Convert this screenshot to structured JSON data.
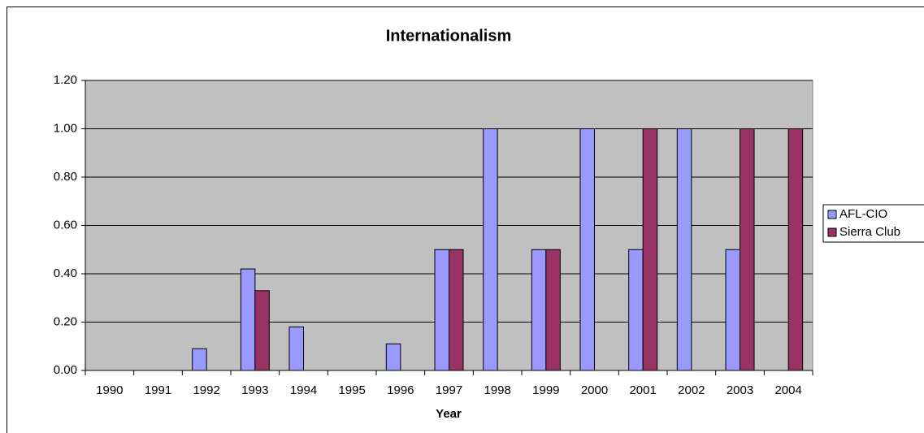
{
  "chart_data": {
    "type": "bar",
    "title": "Internationalism",
    "x_label": "Year",
    "categories": [
      "1990",
      "1991",
      "1992",
      "1993",
      "1994",
      "1995",
      "1996",
      "1997",
      "1998",
      "1999",
      "2000",
      "2001",
      "2002",
      "2003",
      "2004"
    ],
    "series": [
      {
        "name": "AFL-CIO",
        "color": "#9999ff",
        "values": [
          0,
          0,
          0.09,
          0.42,
          0.18,
          0,
          0.11,
          0.5,
          1,
          0.5,
          1,
          0.5,
          1,
          0.5,
          0
        ]
      },
      {
        "name": "Sierra Club",
        "color": "#993366",
        "values": [
          0,
          0,
          0,
          0.33,
          0,
          0,
          0,
          0.5,
          0,
          0.5,
          0,
          1,
          0,
          1,
          1
        ]
      }
    ],
    "ylim": [
      0,
      1.2
    ],
    "yticks": [
      {
        "value": 0,
        "label": "0.00"
      },
      {
        "value": 0.2,
        "label": "0.20"
      },
      {
        "value": 0.4,
        "label": "0.40"
      },
      {
        "value": 0.6,
        "label": "0.60"
      },
      {
        "value": 0.8,
        "label": "0.80"
      },
      {
        "value": 1,
        "label": "1.00"
      },
      {
        "value": 1.2,
        "label": "1.20"
      }
    ],
    "grid": true,
    "legend": "right"
  }
}
